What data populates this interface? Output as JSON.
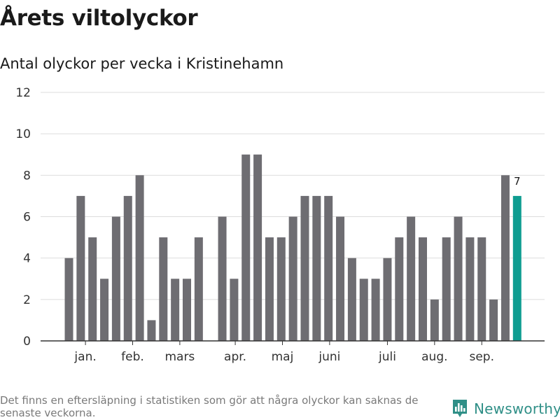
{
  "header": {
    "title": "Årets viltolyckor",
    "subtitle": "Antal olyckor per vecka i Kristinehamn"
  },
  "footer": {
    "note": "Det finns en eftersläpning i statistiken som gör att några olyckor kan saknas de senaste veckorna.",
    "brand": "Newsworthy",
    "brand_icon": "bar-chart-logo-icon"
  },
  "colors": {
    "bar": "#6e6d72",
    "highlight": "#0f9d91",
    "grid": "#dddddd",
    "axis": "#333333",
    "brand": "#2f8f87"
  },
  "chart_data": {
    "type": "bar",
    "title": "Årets viltolyckor",
    "subtitle": "Antal olyckor per vecka i Kristinehamn",
    "xlabel": "",
    "ylabel": "",
    "ylim": [
      0,
      12
    ],
    "yticks": [
      0,
      2,
      4,
      6,
      8,
      10,
      12
    ],
    "grid": true,
    "values": [
      4,
      7,
      5,
      3,
      6,
      7,
      8,
      1,
      5,
      3,
      3,
      5,
      null,
      6,
      3,
      9,
      9,
      5,
      5,
      6,
      7,
      7,
      7,
      6,
      4,
      3,
      3,
      4,
      5,
      6,
      5,
      2,
      5,
      6,
      5,
      5,
      2,
      8,
      7
    ],
    "month_labels": [
      {
        "label": "jan.",
        "at": 1.4
      },
      {
        "label": "feb.",
        "at": 5.4
      },
      {
        "label": "mars",
        "at": 9.4
      },
      {
        "label": "apr.",
        "at": 14.1
      },
      {
        "label": "maj",
        "at": 18.1
      },
      {
        "label": "juni",
        "at": 22.1
      },
      {
        "label": "juli",
        "at": 27.0
      },
      {
        "label": "aug.",
        "at": 31.0
      },
      {
        "label": "sep.",
        "at": 35.0
      }
    ],
    "highlight_index": 38,
    "highlight_label": "7"
  }
}
